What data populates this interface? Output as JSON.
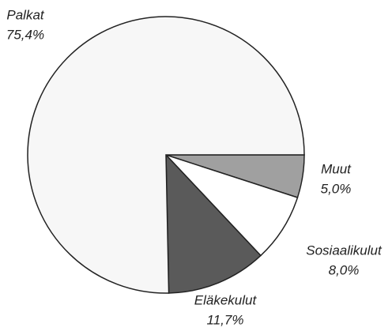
{
  "chart_data": {
    "type": "pie",
    "categories": [
      "Muut",
      "Sosiaalikulut",
      "Eläkekulut",
      "Palkat"
    ],
    "values": [
      5.0,
      8.0,
      11.7,
      75.4
    ],
    "value_labels": [
      "5,0%",
      "8,0%",
      "11,7%",
      "75,4%"
    ],
    "colors": [
      "#a0a0a0",
      "#ffffff",
      "#5a5a5a",
      "#f7f7f7"
    ]
  }
}
